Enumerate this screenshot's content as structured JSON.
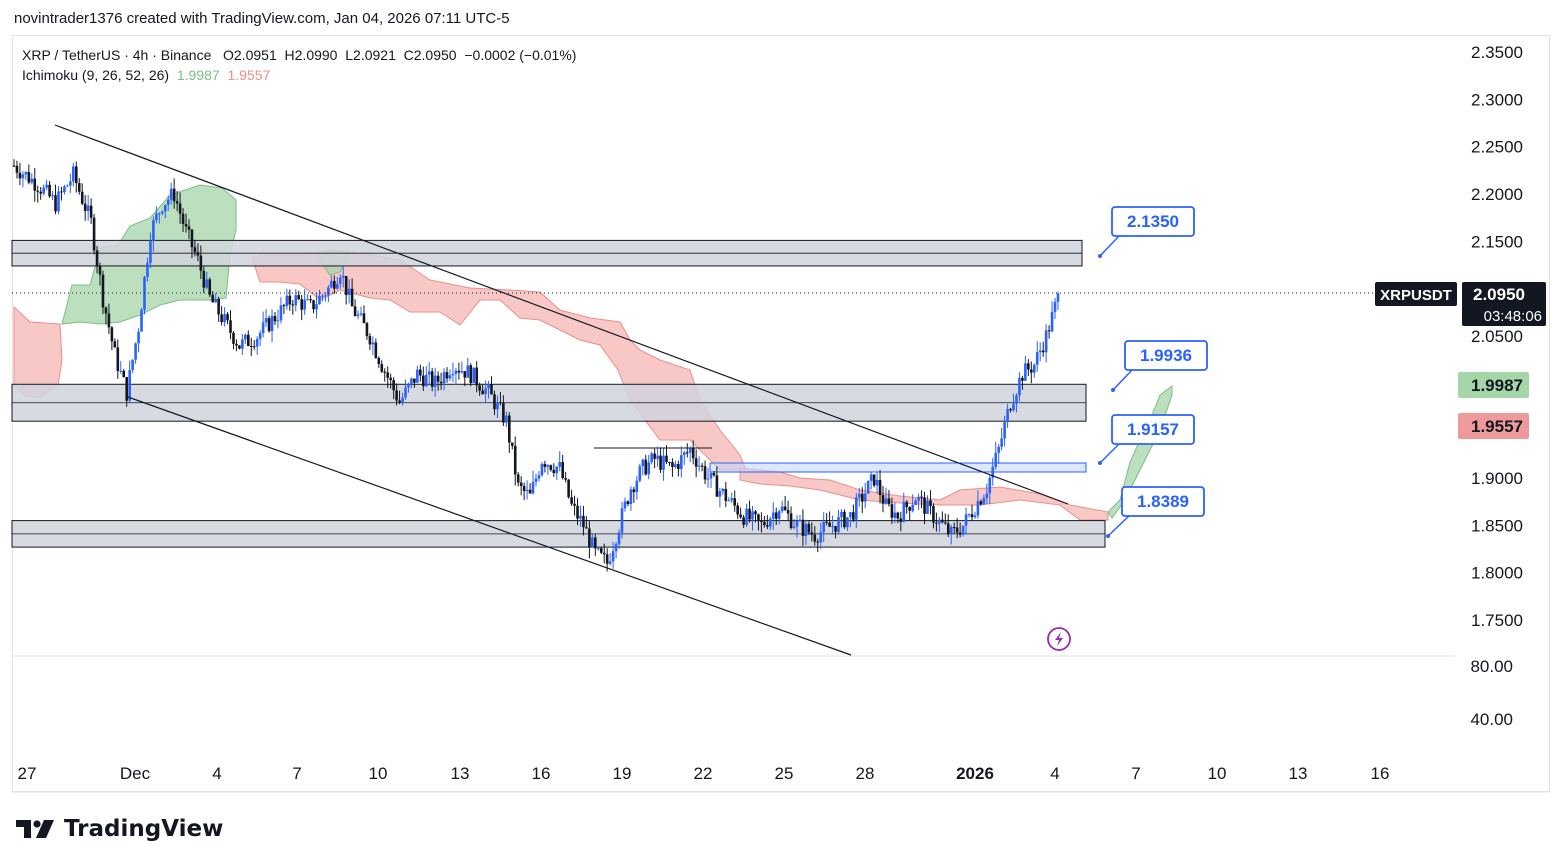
{
  "header": {
    "attribution": "novintrader1376 created with TradingView.com, Jan 04, 2026 07:11 UTC-5"
  },
  "legend": {
    "symbol_line": "XRP / TetherUS · 4h · Binance",
    "open": "O2.0951",
    "high": "H2.0990",
    "low": "L2.0921",
    "close": "C2.0950",
    "change": "−0.0002 (−0.01%)",
    "indicator": "Ichimoku (9, 26, 52, 26)",
    "ind_val1": "1.9987",
    "ind_val2": "1.9557"
  },
  "price_axis": {
    "ticks": [
      "2.3500",
      "2.3000",
      "2.2500",
      "2.2000",
      "2.1500",
      "2.0500",
      "1.9000",
      "1.8500",
      "1.8000",
      "1.7500"
    ],
    "tick_values": [
      2.35,
      2.3,
      2.25,
      2.2,
      2.15,
      2.05,
      1.9,
      1.85,
      1.8,
      1.75
    ],
    "osc_ticks": [
      "80.00",
      "40.00"
    ],
    "symbol_tag": "XRPUSDT",
    "price_tag": "2.0950",
    "countdown": "03:48:06",
    "green_tag": "1.9987",
    "red_tag": "1.9557"
  },
  "time_axis": [
    "27",
    "Dec",
    "4",
    "7",
    "10",
    "13",
    "16",
    "19",
    "22",
    "25",
    "28",
    "2026",
    "4",
    "7",
    "10",
    "13",
    "16"
  ],
  "footer": {
    "brand": "TradingView"
  },
  "colors": {
    "up": "#2962ff",
    "down": "#131722",
    "cloud_green": "#a5d6a7",
    "cloud_red": "#f4a9a4",
    "label_blue": "#2962ff",
    "zone": "#d1d4dc"
  },
  "chart_data": {
    "type": "candlestick",
    "title": "XRP / TetherUS · 4h · Binance",
    "y_range": [
      1.69,
      2.37
    ],
    "last_price": 2.095,
    "zones": [
      {
        "name": "zone-top",
        "low": 2.124,
        "high": 2.151
      },
      {
        "name": "zone-mid",
        "low": 1.96,
        "high": 1.999
      },
      {
        "name": "zone-low",
        "low": 1.827,
        "high": 1.855
      }
    ],
    "annotations": [
      {
        "label": "2.1350",
        "value": 2.135
      },
      {
        "label": "1.9936",
        "value": 1.9936
      },
      {
        "label": "1.9157",
        "value": 1.9157
      },
      {
        "label": "1.8389",
        "value": 1.8389
      }
    ],
    "channel": [
      {
        "name": "upper",
        "from": [
          "Nov 28",
          2.275
        ],
        "to": [
          "Jan 04",
          1.872
        ]
      },
      {
        "name": "lower",
        "from": [
          "Nov 29",
          1.966
        ],
        "to": [
          "Dec 27",
          1.7
        ]
      }
    ],
    "close_path": [
      [
        0,
        2.23
      ],
      [
        8,
        2.21
      ],
      [
        14,
        2.19
      ],
      [
        20,
        2.22
      ],
      [
        26,
        2.17
      ],
      [
        30,
        2.09
      ],
      [
        34,
        2.03
      ],
      [
        38,
        1.99
      ],
      [
        42,
        2.06
      ],
      [
        46,
        2.16
      ],
      [
        50,
        2.19
      ],
      [
        54,
        2.2
      ],
      [
        58,
        2.16
      ],
      [
        62,
        2.13
      ],
      [
        66,
        2.09
      ],
      [
        70,
        2.07
      ],
      [
        76,
        2.04
      ],
      [
        82,
        2.05
      ],
      [
        88,
        2.07
      ],
      [
        94,
        2.09
      ],
      [
        100,
        2.08
      ],
      [
        106,
        2.1
      ],
      [
        110,
        2.12
      ],
      [
        114,
        2.08
      ],
      [
        120,
        2.05
      ],
      [
        124,
        2.02
      ],
      [
        130,
        1.98
      ],
      [
        136,
        2.01
      ],
      [
        142,
        2.0
      ],
      [
        148,
        2.02
      ],
      [
        154,
        2.01
      ],
      [
        160,
        1.99
      ],
      [
        166,
        1.96
      ],
      [
        170,
        1.89
      ],
      [
        174,
        1.88
      ],
      [
        178,
        1.92
      ],
      [
        184,
        1.91
      ],
      [
        188,
        1.87
      ],
      [
        192,
        1.85
      ],
      [
        196,
        1.82
      ],
      [
        200,
        1.81
      ],
      [
        204,
        1.85
      ],
      [
        208,
        1.89
      ],
      [
        212,
        1.91
      ],
      [
        216,
        1.92
      ],
      [
        222,
        1.91
      ],
      [
        228,
        1.93
      ],
      [
        234,
        1.9
      ],
      [
        240,
        1.88
      ],
      [
        246,
        1.86
      ],
      [
        252,
        1.85
      ],
      [
        258,
        1.87
      ],
      [
        264,
        1.85
      ],
      [
        270,
        1.84
      ],
      [
        276,
        1.85
      ],
      [
        282,
        1.86
      ],
      [
        286,
        1.88
      ],
      [
        290,
        1.9
      ],
      [
        294,
        1.87
      ],
      [
        298,
        1.86
      ],
      [
        304,
        1.88
      ],
      [
        310,
        1.86
      ],
      [
        316,
        1.84
      ],
      [
        320,
        1.85
      ],
      [
        324,
        1.87
      ],
      [
        328,
        1.89
      ],
      [
        332,
        1.93
      ],
      [
        336,
        1.98
      ],
      [
        340,
        2.01
      ],
      [
        344,
        2.02
      ],
      [
        348,
        2.05
      ],
      [
        352,
        2.09
      ]
    ]
  }
}
